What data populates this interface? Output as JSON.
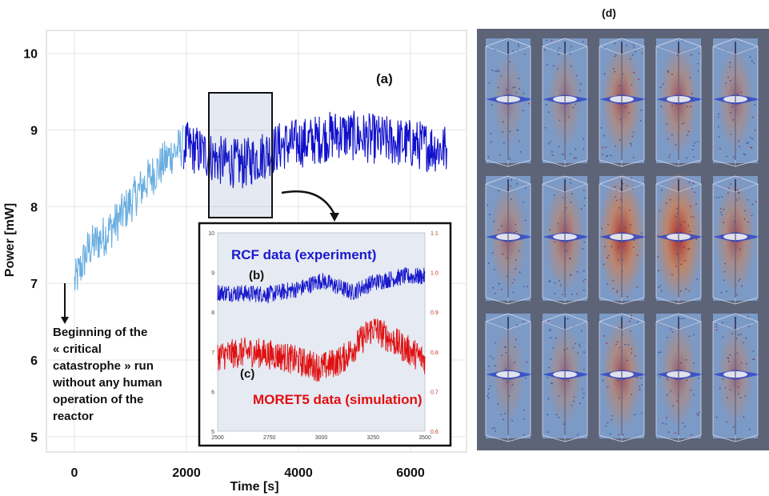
{
  "chart_data": [
    {
      "type": "line",
      "xlabel": "Time [s]",
      "ylabel": "Power [mW]",
      "xlim": [
        -500,
        7000
      ],
      "ylim": [
        4.8,
        10.3
      ],
      "xticks": [
        "0",
        "2000",
        "4000",
        "6000"
      ],
      "yticks": [
        "5",
        "6",
        "7",
        "8",
        "9",
        "10"
      ],
      "grid": true,
      "series": [
        {
          "color": "#6aaee0",
          "points": [
            [
              0,
              7.0
            ],
            [
              250,
              7.45
            ],
            [
              500,
              7.6
            ],
            [
              750,
              7.8
            ],
            [
              1000,
              8.05
            ],
            [
              1250,
              8.3
            ],
            [
              1500,
              8.5
            ],
            [
              1750,
              8.7
            ],
            [
              1950,
              8.8
            ]
          ]
        },
        {
          "color": "#1010cc",
          "points": [
            [
              1950,
              8.8
            ],
            [
              2300,
              8.7
            ],
            [
              2600,
              8.6
            ],
            [
              3000,
              8.55
            ],
            [
              3300,
              8.65
            ],
            [
              3700,
              8.8
            ],
            [
              4200,
              8.85
            ],
            [
              4700,
              8.95
            ],
            [
              5200,
              8.9
            ],
            [
              5700,
              8.85
            ],
            [
              6200,
              8.8
            ],
            [
              6650,
              8.75
            ]
          ]
        }
      ],
      "annotations": {
        "a": "(a)",
        "start_text": [
          "Beginning of the",
          "« critical",
          "catastrophe » run",
          "without any human",
          "operation of the",
          "reactor"
        ]
      }
    },
    {
      "type": "line",
      "inset": true,
      "xlim": [
        2500,
        3500
      ],
      "ylim_left": [
        5,
        10
      ],
      "ylim_right": [
        0.6,
        1.1
      ],
      "xticks": [
        "2500",
        "2750",
        "3000",
        "3250",
        "3500"
      ],
      "yticks_left": [
        "5",
        "6",
        "7",
        "8",
        "9",
        "10"
      ],
      "yticks_right": [
        "0.6",
        "0.7",
        "0.8",
        "0.9",
        "1.0",
        "1.1"
      ],
      "series": [
        {
          "name": "RCF data (experiment)",
          "label": "(b)",
          "color": "#1a1acc",
          "points": [
            [
              2500,
              8.5
            ],
            [
              2750,
              8.45
            ],
            [
              2900,
              8.6
            ],
            [
              3000,
              8.8
            ],
            [
              3150,
              8.5
            ],
            [
              3250,
              8.75
            ],
            [
              3400,
              8.9
            ],
            [
              3500,
              8.9
            ]
          ]
        },
        {
          "name": "MORET5 data (simulation)",
          "label": "(c)",
          "color": "#e01010",
          "points": [
            [
              2500,
              6.9
            ],
            [
              2650,
              7.0
            ],
            [
              2800,
              6.9
            ],
            [
              3000,
              6.6
            ],
            [
              3100,
              6.8
            ],
            [
              3250,
              7.6
            ],
            [
              3400,
              7.1
            ],
            [
              3500,
              6.8
            ]
          ]
        }
      ]
    }
  ],
  "panel_d": {
    "label": "(d)",
    "rows": 3,
    "cols": 5,
    "intensity": [
      [
        0.15,
        0.25,
        0.55,
        0.5,
        0.35
      ],
      [
        0.4,
        0.5,
        0.85,
        0.9,
        0.55
      ],
      [
        0.2,
        0.3,
        0.55,
        0.4,
        0.3
      ]
    ]
  }
}
